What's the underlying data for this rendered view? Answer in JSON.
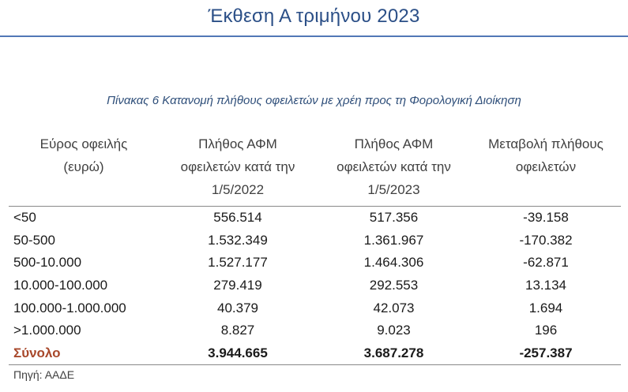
{
  "document": {
    "title": "Έκθεση Α τριμήνου 2023"
  },
  "caption": "Πίνακας 6 Κατανομή πλήθους οφειλετών με χρέη προς τη Φορολογική Διοίκηση",
  "table": {
    "headers": [
      [
        "Εύρος οφειλής",
        "(ευρώ)"
      ],
      [
        "Πλήθος ΑΦΜ",
        "οφειλετών κατά την",
        "1/5/2022"
      ],
      [
        "Πλήθος ΑΦΜ",
        "οφειλετών κατά την",
        "1/5/2023"
      ],
      [
        "Μεταβολή πλήθους",
        "οφειλετών"
      ]
    ],
    "rows": [
      [
        "<50",
        "556.514",
        "517.356",
        "-39.158"
      ],
      [
        "50-500",
        "1.532.349",
        "1.361.967",
        "-170.382"
      ],
      [
        "500-10.000",
        "1.527.177",
        "1.464.306",
        "-62.871"
      ],
      [
        "10.000-100.000",
        "279.419",
        "292.553",
        "13.134"
      ],
      [
        "100.000-1.000.000",
        "40.379",
        "42.073",
        "1.694"
      ],
      [
        ">1.000.000",
        "8.827",
        "9.023",
        "196"
      ]
    ],
    "total": [
      "Σύνολο",
      "3.944.665",
      "3.687.278",
      "-257.387"
    ]
  },
  "source": "Πηγή: ΑΑΔΕ",
  "colors": {
    "title": "#2b4f87",
    "rule": "#5177b6",
    "caption": "#2f4f7a",
    "total_label": "#a8482b"
  }
}
